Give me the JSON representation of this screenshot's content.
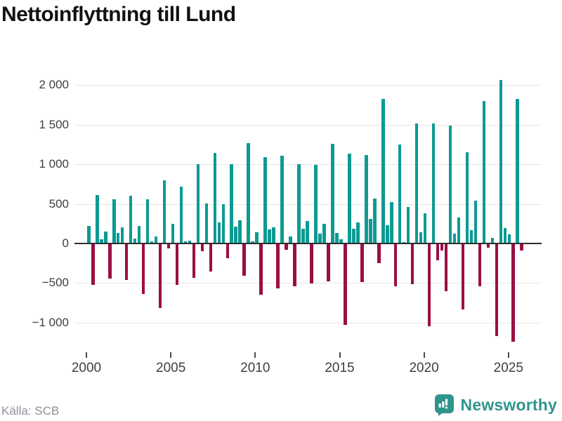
{
  "title": "Nettoinflyttning till Lund",
  "source_text": "Källa: SCB",
  "brand": {
    "name": "Newsworthy",
    "color": "#2f948c"
  },
  "colors": {
    "positive_bar": "#0d9a93",
    "negative_bar": "#9b0e45",
    "gridline": "#e7e7e7",
    "zero_axis": "#2e2e2e",
    "tick_label": "#3f3f44",
    "title_text": "#14120f",
    "source_text": "#8f8f99"
  },
  "chart_data": {
    "type": "bar",
    "title": "Nettoinflyttning till Lund",
    "frequency": "quarterly",
    "x_start": "2000 Q1",
    "x_end": "2025 Q4",
    "x_tick_years": [
      2000,
      2005,
      2010,
      2015,
      2020,
      2025
    ],
    "x_tick_labels": [
      "2000",
      "2005",
      "2010",
      "2015",
      "2020",
      "2025"
    ],
    "y_ticks": [
      2000,
      1500,
      1000,
      500,
      0,
      -500,
      -1000
    ],
    "y_tick_labels": [
      "2 000",
      "1 500",
      "1 000",
      "500",
      "0",
      "−500",
      "−1 000"
    ],
    "ylim": [
      -1350,
      2200
    ],
    "grid": true,
    "legend": "none",
    "series": [
      {
        "name": "Nettoinflyttning till Lund (personer per kvartal)",
        "values": [
          220,
          -510,
          615,
          50,
          150,
          -435,
          560,
          135,
          200,
          -450,
          605,
          60,
          220,
          -625,
          560,
          30,
          85,
          -805,
          795,
          -50,
          245,
          -510,
          715,
          25,
          40,
          -425,
          1000,
          -90,
          505,
          -345,
          1145,
          270,
          495,
          -180,
          1000,
          210,
          290,
          -395,
          1265,
          30,
          145,
          -635,
          1090,
          175,
          200,
          -555,
          1110,
          -70,
          85,
          -535,
          1000,
          190,
          285,
          -495,
          990,
          125,
          250,
          -465,
          1260,
          135,
          50,
          -1015,
          1135,
          190,
          265,
          -480,
          1120,
          310,
          565,
          -240,
          1830,
          235,
          520,
          -530,
          1250,
          20,
          465,
          -505,
          1520,
          145,
          385,
          -1040,
          1515,
          -200,
          -75,
          -590,
          1490,
          125,
          330,
          -820,
          1150,
          170,
          540,
          -530,
          1800,
          -45,
          75,
          -1160,
          2065,
          195,
          115,
          -1230,
          1830,
          -80
        ]
      }
    ]
  }
}
